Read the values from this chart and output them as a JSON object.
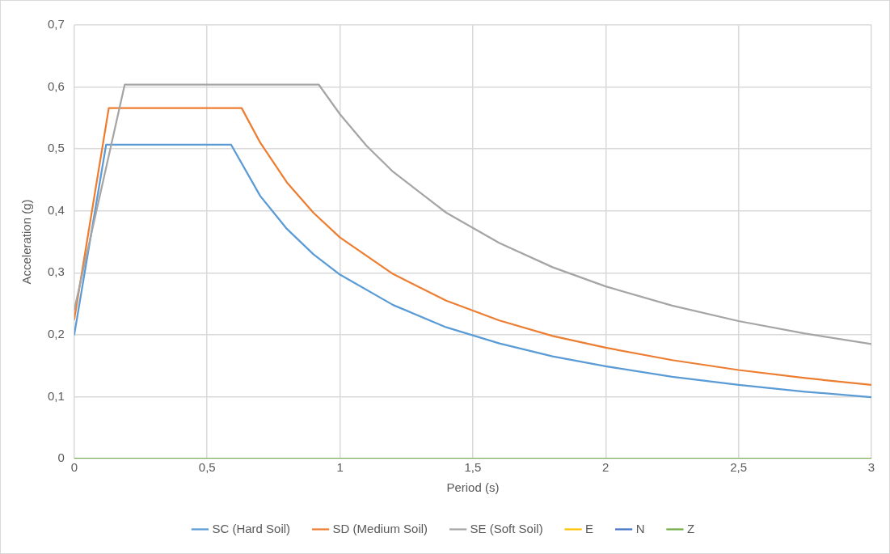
{
  "chart_data": {
    "type": "line",
    "xlabel": "Period (s)",
    "ylabel": "Acceleration (g)",
    "xlim": [
      0,
      3
    ],
    "xticks": [
      0,
      {
        "value": 0.5,
        "label": "0,5"
      },
      1,
      {
        "value": 1.5,
        "label": "1,5"
      },
      2,
      {
        "value": 2.5,
        "label": "2,5"
      },
      3
    ],
    "ylim": [
      0,
      0.7
    ],
    "yticks": [
      0,
      {
        "value": 0.1,
        "label": "0,1"
      },
      {
        "value": 0.2,
        "label": "0,2"
      },
      {
        "value": 0.3,
        "label": "0,3"
      },
      {
        "value": 0.4,
        "label": "0,4"
      },
      {
        "value": 0.5,
        "label": "0,5"
      },
      {
        "value": 0.6,
        "label": "0,6"
      },
      {
        "value": 0.7,
        "label": "0,7"
      }
    ],
    "grid": true,
    "legend": "bottom",
    "marker": "none",
    "line_style": "solid",
    "series": [
      {
        "name": "SC (Hard Soil)",
        "color": "#5b9bd5",
        "x": [
          0,
          0.12,
          0.59,
          0.7,
          0.8,
          0.9,
          1,
          1.2,
          1.4,
          1.6,
          1.8,
          2,
          2.25,
          2.5,
          2.75,
          3
        ],
        "values": [
          0.2,
          0.507,
          0.507,
          0.424,
          0.371,
          0.33,
          0.297,
          0.248,
          0.212,
          0.186,
          0.165,
          0.149,
          0.132,
          0.119,
          0.108,
          0.099
        ]
      },
      {
        "name": "SD (Medium Soil)",
        "color": "#ed7d31",
        "x": [
          0,
          0.13,
          0.63,
          0.7,
          0.8,
          0.9,
          1,
          1.2,
          1.4,
          1.6,
          1.8,
          2,
          2.25,
          2.5,
          2.75,
          3
        ],
        "values": [
          0.225,
          0.566,
          0.566,
          0.51,
          0.446,
          0.397,
          0.357,
          0.298,
          0.255,
          0.223,
          0.198,
          0.179,
          0.159,
          0.143,
          0.13,
          0.119
        ]
      },
      {
        "name": "SE (Soft Soil)",
        "color": "#a5a5a5",
        "x": [
          0,
          0.19,
          0.92,
          1,
          1.1,
          1.2,
          1.4,
          1.6,
          1.8,
          2,
          2.25,
          2.5,
          2.75,
          3
        ],
        "values": [
          0.24,
          0.604,
          0.604,
          0.556,
          0.505,
          0.463,
          0.397,
          0.348,
          0.309,
          0.278,
          0.247,
          0.222,
          0.202,
          0.185
        ]
      },
      {
        "name": "E",
        "color": "#ffc000",
        "values": [
          null,
          null
        ]
      },
      {
        "name": "N",
        "color": "#4472c4",
        "values": [
          null,
          null
        ]
      },
      {
        "name": "Z",
        "color": "#70ad47",
        "x": [
          0,
          3
        ],
        "values": [
          0,
          0
        ]
      }
    ]
  }
}
